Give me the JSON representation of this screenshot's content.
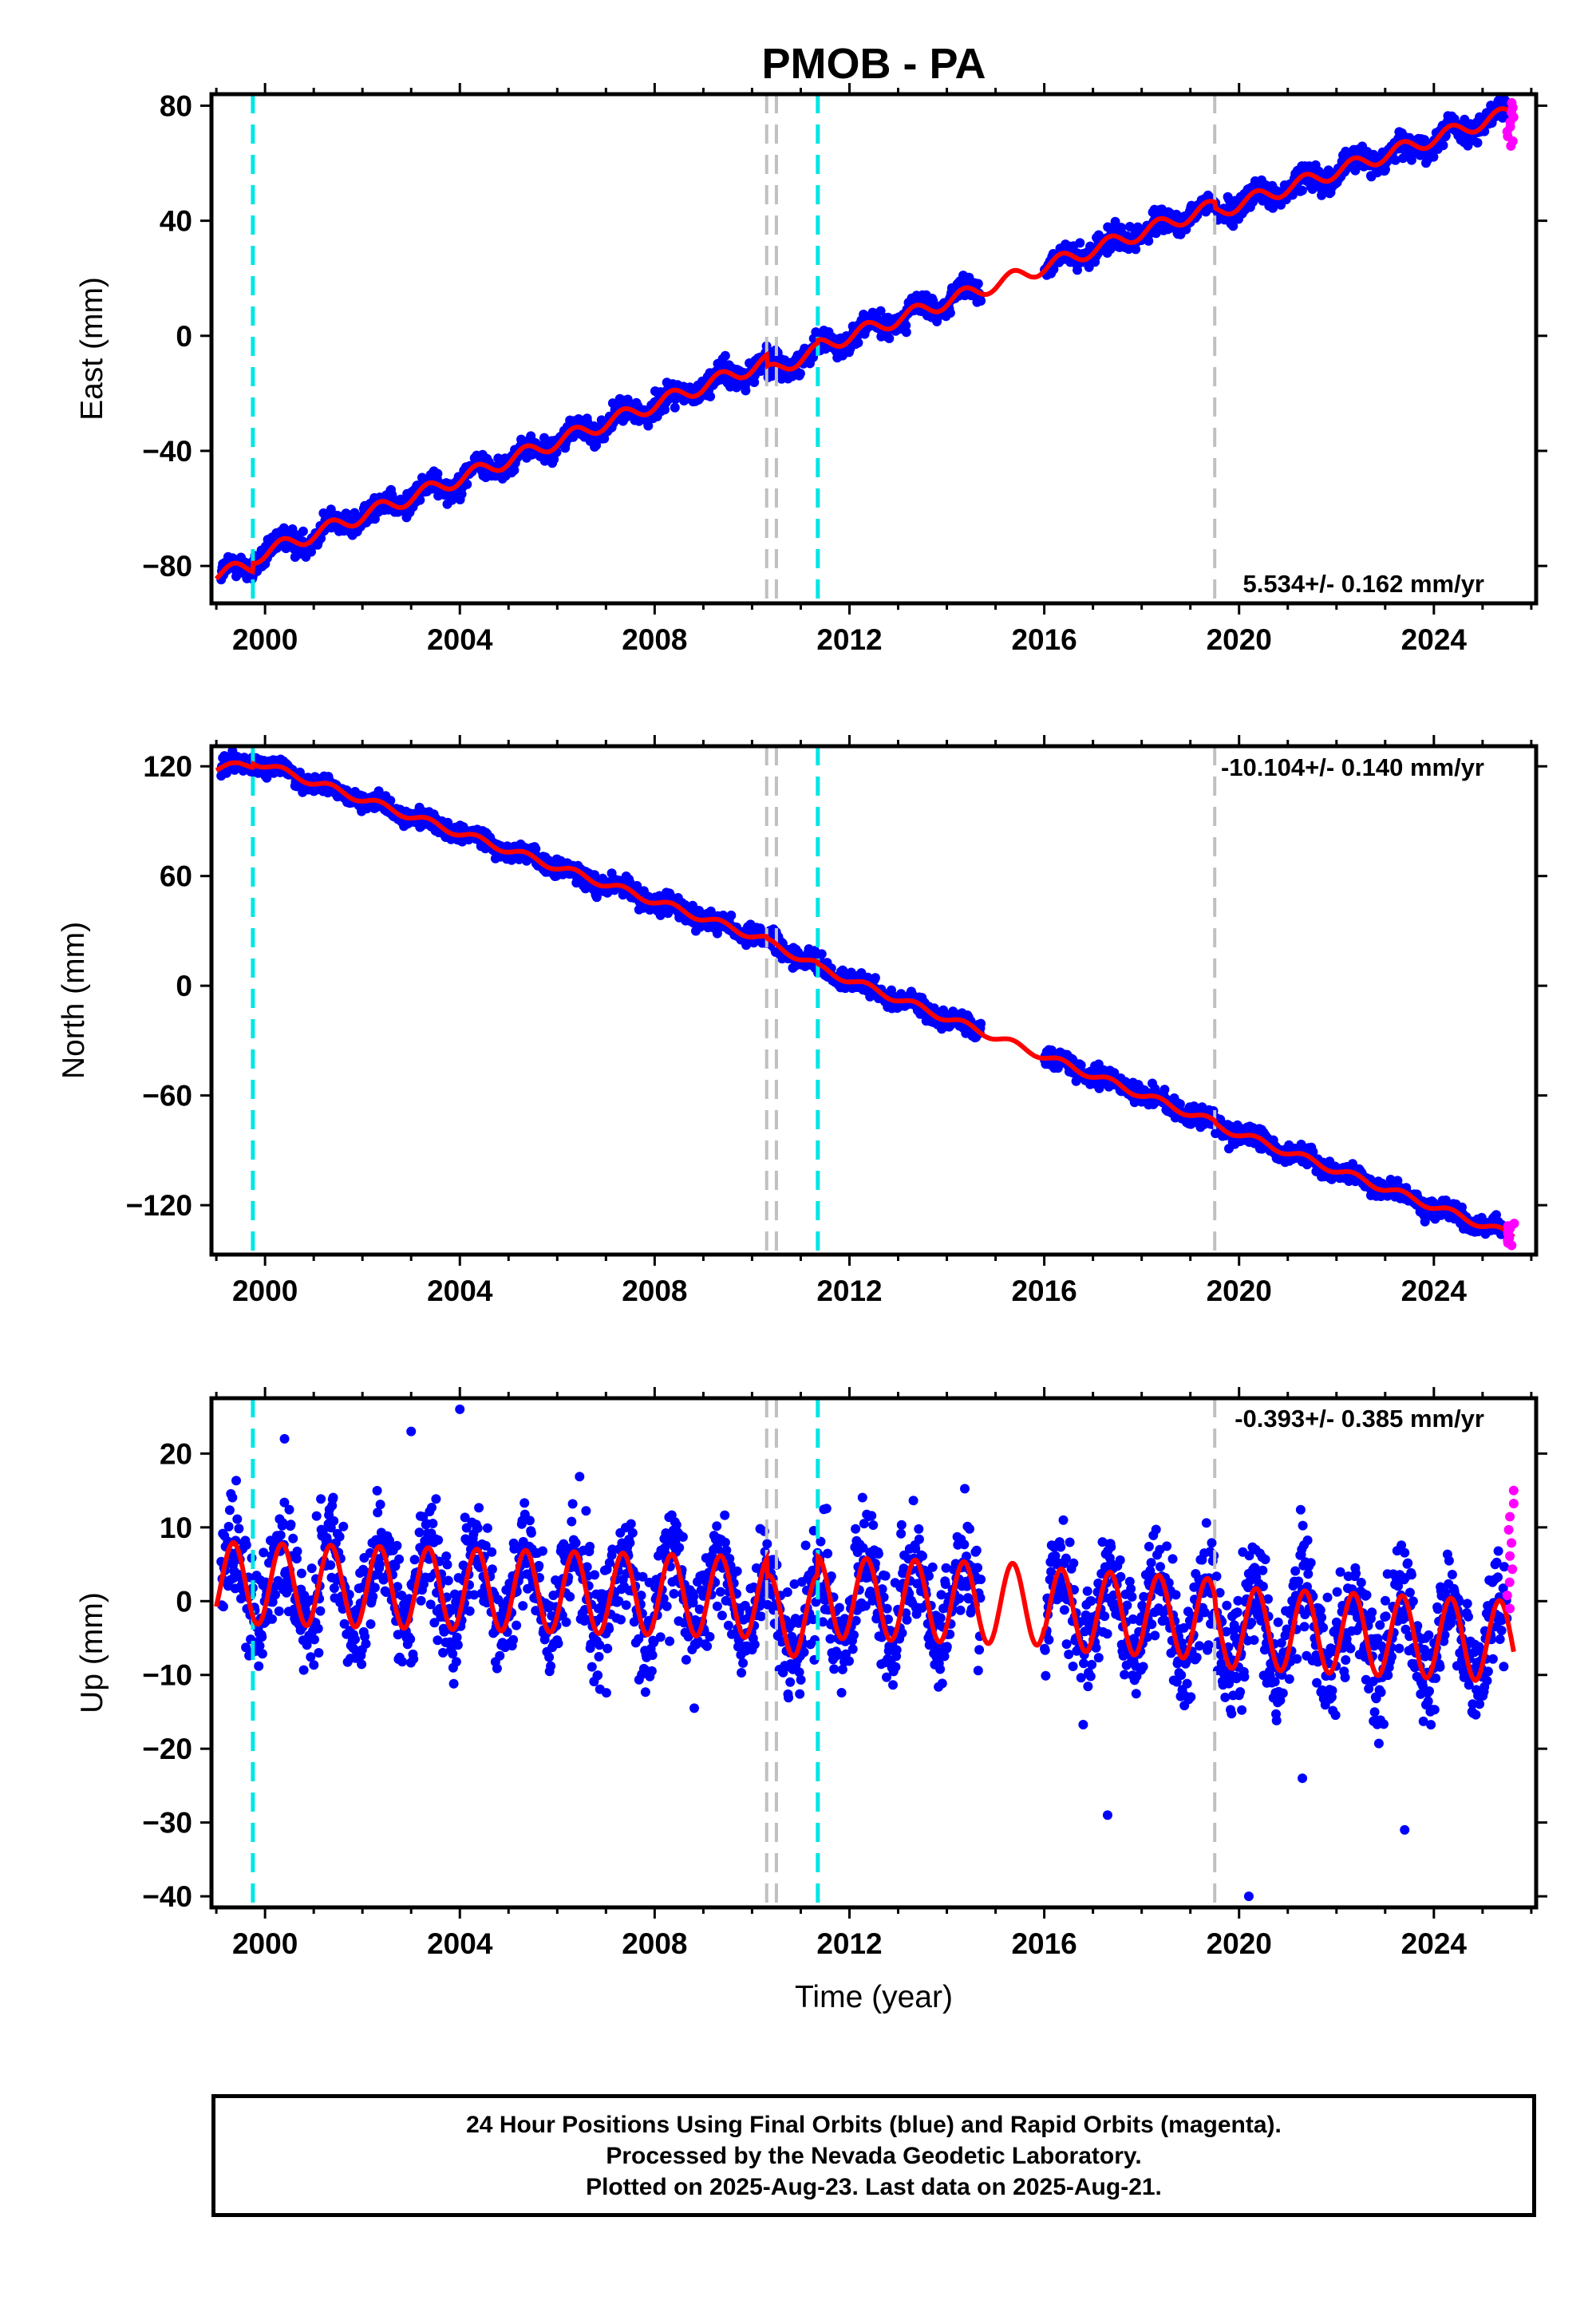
{
  "title": "PMOB - PA",
  "xlabel": "Time (year)",
  "footer": {
    "line1": "24 Hour Positions Using Final Orbits (blue) and Rapid Orbits (magenta).",
    "line2": "Processed by the Nevada Geodetic Laboratory.",
    "line3": "Plotted on 2025-Aug-23. Last data on 2025-Aug-21."
  },
  "colors": {
    "final_orbits": "#0000ff",
    "rapid_orbits": "#ff00ff",
    "model_fit": "#ff0000",
    "equipment_change": "#00e5e5",
    "other_event": "#c0c0c0"
  },
  "chart_data": [
    {
      "type": "scatter",
      "ylabel": "East (mm)",
      "rate_text": "5.534+/- 0.162 mm/yr",
      "xlim": [
        1998.9,
        2026.1
      ],
      "ylim": [
        -93,
        84
      ],
      "xticks": [
        2000,
        2004,
        2008,
        2012,
        2016,
        2020,
        2024
      ],
      "xtick_labels": [
        "2000",
        "2004",
        "2008",
        "2012",
        "2016",
        "2020",
        "2024"
      ],
      "yticks": [
        -80,
        -40,
        0,
        40,
        80
      ],
      "ytick_labels": [
        "−80",
        "−40",
        "0",
        "40",
        "80"
      ],
      "gray_event_lines": [
        2010.3,
        2010.5,
        2019.5
      ],
      "cyan_event_lines": [
        1999.75,
        2011.35
      ],
      "data_gap": [
        2014.7,
        2016.0
      ],
      "model": {
        "segments": [
          {
            "x": [
              1999.0,
              1999.75
            ],
            "y": [
              -83,
              -80
            ]
          },
          {
            "x": [
              1999.75,
              2010.3
            ],
            "y": [
              -77,
              -9
            ]
          },
          {
            "x": [
              2010.3,
              2011.35
            ],
            "y": [
              -13,
              -5
            ]
          },
          {
            "x": [
              2011.35,
              2019.5
            ],
            "y": [
              -4,
              45
            ]
          },
          {
            "x": [
              2019.5,
              2025.65
            ],
            "y": [
              43,
              78
            ]
          }
        ],
        "annual_amplitude_mm": 2.5
      },
      "scatter_noise_mm": 2.0,
      "rapid_points": {
        "x_range": [
          2025.5,
          2025.65
        ],
        "y_range": [
          66,
          81
        ]
      }
    },
    {
      "type": "scatter",
      "ylabel": "North (mm)",
      "rate_text": "-10.104+/- 0.140 mm/yr",
      "xlim": [
        1998.9,
        2026.1
      ],
      "ylim": [
        -147,
        131
      ],
      "xticks": [
        2000,
        2004,
        2008,
        2012,
        2016,
        2020,
        2024
      ],
      "xtick_labels": [
        "2000",
        "2004",
        "2008",
        "2012",
        "2016",
        "2020",
        "2024"
      ],
      "yticks": [
        -120,
        -60,
        0,
        60,
        120
      ],
      "ytick_labels": [
        "−120",
        "−60",
        "0",
        "60",
        "120"
      ],
      "gray_event_lines": [
        2010.3,
        2010.5,
        2019.5
      ],
      "cyan_event_lines": [
        1999.75,
        2011.35
      ],
      "data_gap": [
        2014.7,
        2016.0
      ],
      "model": {
        "segments": [
          {
            "x": [
              1999.0,
              1999.75
            ],
            "y": [
              119,
              121
            ]
          },
          {
            "x": [
              1999.75,
              2010.3
            ],
            "y": [
              123,
              25
            ]
          },
          {
            "x": [
              2010.3,
              2011.35
            ],
            "y": [
              24,
              11
            ]
          },
          {
            "x": [
              2011.35,
              2019.5
            ],
            "y": [
              10,
              -75
            ]
          },
          {
            "x": [
              2019.5,
              2025.65
            ],
            "y": [
              -76,
              -137
            ]
          }
        ],
        "annual_amplitude_mm": 2.0
      },
      "scatter_noise_mm": 2.5,
      "rapid_points": {
        "x_range": [
          2025.5,
          2025.65
        ],
        "y_range": [
          -142,
          -130
        ]
      }
    },
    {
      "type": "scatter",
      "ylabel": "Up (mm)",
      "rate_text": "-0.393+/- 0.385 mm/yr",
      "xlim": [
        1998.9,
        2026.1
      ],
      "ylim": [
        -41.5,
        27.5
      ],
      "xticks": [
        2000,
        2004,
        2008,
        2012,
        2016,
        2020,
        2024
      ],
      "xtick_labels": [
        "2000",
        "2004",
        "2008",
        "2012",
        "2016",
        "2020",
        "2024"
      ],
      "yticks": [
        -40,
        -30,
        -20,
        -10,
        0,
        10,
        20
      ],
      "ytick_labels": [
        "−40",
        "−30",
        "−20",
        "−10",
        "0",
        "10",
        "20"
      ],
      "gray_event_lines": [
        2010.3,
        2010.5,
        2019.5
      ],
      "cyan_event_lines": [
        1999.75,
        2011.35
      ],
      "data_gap": [
        2014.7,
        2016.0
      ],
      "model": {
        "segments": [
          {
            "x": [
              1999.0,
              2010.3
            ],
            "y": [
              2.5,
              0.5
            ]
          },
          {
            "x": [
              2010.3,
              2011.35
            ],
            "y": [
              -2,
              -2
            ]
          },
          {
            "x": [
              2011.35,
              2016.0
            ],
            "y": [
              0.5,
              -0.5
            ]
          },
          {
            "x": [
              2016.0,
              2019.5
            ],
            "y": [
              -1,
              -2.5
            ]
          },
          {
            "x": [
              2019.5,
              2025.65
            ],
            "y": [
              -3.5,
              -5.5
            ]
          }
        ],
        "annual_amplitude_mm": 5.5
      },
      "scatter_noise_mm": 5.0,
      "outliers": [
        [
          2004.0,
          26
        ],
        [
          2017.3,
          -29
        ],
        [
          2020.2,
          -40
        ],
        [
          2023.4,
          -31
        ],
        [
          2003.0,
          23
        ],
        [
          2000.4,
          22
        ],
        [
          2021.3,
          -24
        ]
      ],
      "rapid_points": {
        "x_range": [
          2025.5,
          2025.65
        ],
        "y_range": [
          -1,
          15
        ]
      }
    }
  ]
}
